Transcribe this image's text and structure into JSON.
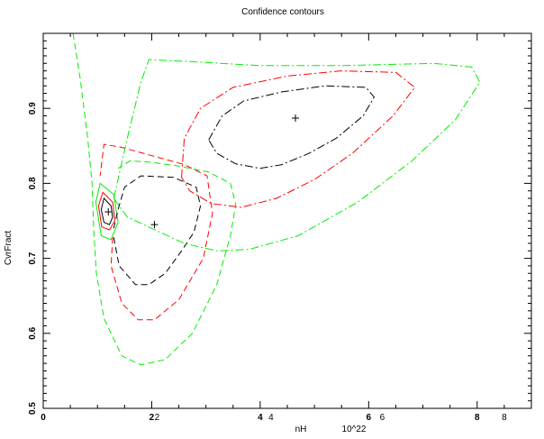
{
  "chart_data": {
    "type": "contour",
    "title": "Confidence contours",
    "xlabel": "nH",
    "xlabel_unit": "10^22",
    "ylabel": "CvrFract",
    "xlim": [
      0,
      9
    ],
    "ylim": [
      0.5,
      1.0
    ],
    "x_major_ticks": [
      0,
      2,
      4,
      6,
      8
    ],
    "x_tick_labels_bold": [
      "0",
      "2",
      "4",
      "6",
      "8"
    ],
    "x_tick_labels_plain": [
      "2",
      "4",
      "6",
      "8"
    ],
    "x_plain_positions": [
      2.1,
      4.2,
      6.25,
      8.5
    ],
    "y_major_ticks": [
      0.5,
      0.6,
      0.7,
      0.8,
      0.9
    ],
    "y_tick_labels": [
      "0.5",
      "0.6",
      "0.7",
      "0.8",
      "0.9"
    ],
    "colors": {
      "level1": "#000000",
      "level2": "#ff0000",
      "level3": "#00ee00"
    },
    "best_fits": [
      {
        "x": 1.2,
        "y": 0.762
      },
      {
        "x": 2.05,
        "y": 0.745
      },
      {
        "x": 4.65,
        "y": 0.887
      }
    ],
    "series": [
      {
        "level": 1,
        "color": "#000000",
        "dash": "solid",
        "closed": true,
        "points": [
          [
            1.12,
            0.78
          ],
          [
            1.25,
            0.77
          ],
          [
            1.28,
            0.755
          ],
          [
            1.22,
            0.745
          ],
          [
            1.12,
            0.748
          ],
          [
            1.07,
            0.765
          ]
        ]
      },
      {
        "level": 2,
        "color": "#ff0000",
        "dash": "solid",
        "closed": true,
        "points": [
          [
            1.1,
            0.788
          ],
          [
            1.28,
            0.775
          ],
          [
            1.32,
            0.75
          ],
          [
            1.22,
            0.738
          ],
          [
            1.08,
            0.742
          ],
          [
            1.02,
            0.77
          ]
        ]
      },
      {
        "level": 3,
        "color": "#00ee00",
        "dash": "solid",
        "closed": true,
        "points": [
          [
            1.05,
            0.8
          ],
          [
            1.3,
            0.785
          ],
          [
            1.38,
            0.748
          ],
          [
            1.25,
            0.725
          ],
          [
            1.07,
            0.73
          ],
          [
            0.97,
            0.775
          ]
        ]
      },
      {
        "level": 1,
        "color": "#000000",
        "dash": "dash",
        "closed": false,
        "points": [
          [
            1.3,
            0.728
          ],
          [
            1.4,
            0.69
          ],
          [
            1.7,
            0.665
          ],
          [
            1.95,
            0.665
          ],
          [
            2.25,
            0.68
          ],
          [
            2.55,
            0.71
          ],
          [
            2.78,
            0.735
          ],
          [
            2.9,
            0.77
          ],
          [
            2.82,
            0.795
          ],
          [
            2.4,
            0.808
          ],
          [
            1.8,
            0.81
          ],
          [
            1.5,
            0.795
          ],
          [
            1.38,
            0.765
          ],
          [
            1.3,
            0.74
          ]
        ]
      },
      {
        "level": 2,
        "color": "#ff0000",
        "dash": "dash",
        "closed": false,
        "points": [
          [
            1.28,
            0.728
          ],
          [
            1.25,
            0.69
          ],
          [
            1.45,
            0.64
          ],
          [
            1.75,
            0.618
          ],
          [
            2.05,
            0.618
          ],
          [
            2.5,
            0.645
          ],
          [
            2.95,
            0.7
          ],
          [
            3.12,
            0.76
          ],
          [
            3.02,
            0.81
          ],
          [
            2.6,
            0.825
          ],
          [
            1.95,
            0.838
          ],
          [
            1.45,
            0.848
          ],
          [
            1.12,
            0.852
          ],
          [
            1.05,
            0.81
          ]
        ]
      },
      {
        "level": 3,
        "color": "#00ee00",
        "dash": "dash",
        "closed": false,
        "points": [
          [
            0.55,
            1.0
          ],
          [
            0.68,
            0.94
          ],
          [
            0.82,
            0.86
          ],
          [
            0.9,
            0.8
          ],
          [
            0.93,
            0.74
          ],
          [
            0.98,
            0.68
          ],
          [
            1.12,
            0.62
          ],
          [
            1.45,
            0.57
          ],
          [
            1.8,
            0.558
          ],
          [
            2.25,
            0.565
          ],
          [
            2.75,
            0.6
          ],
          [
            3.2,
            0.665
          ],
          [
            3.45,
            0.73
          ],
          [
            3.55,
            0.772
          ],
          [
            3.45,
            0.8
          ],
          [
            3.05,
            0.815
          ],
          [
            2.5,
            0.823
          ],
          [
            2.0,
            0.828
          ],
          [
            1.6,
            0.83
          ],
          [
            1.38,
            0.82
          ]
        ]
      },
      {
        "level": 1,
        "color": "#000000",
        "dash": "dashdot",
        "closed": true,
        "points": [
          [
            3.05,
            0.858
          ],
          [
            3.3,
            0.89
          ],
          [
            3.7,
            0.91
          ],
          [
            4.4,
            0.922
          ],
          [
            5.2,
            0.93
          ],
          [
            5.95,
            0.928
          ],
          [
            6.1,
            0.915
          ],
          [
            5.9,
            0.89
          ],
          [
            5.4,
            0.86
          ],
          [
            4.9,
            0.84
          ],
          [
            4.4,
            0.825
          ],
          [
            4.0,
            0.82
          ],
          [
            3.55,
            0.826
          ],
          [
            3.2,
            0.84
          ]
        ]
      },
      {
        "level": 2,
        "color": "#ff0000",
        "dash": "dashdot",
        "closed": true,
        "points": [
          [
            2.55,
            0.808
          ],
          [
            2.6,
            0.86
          ],
          [
            2.9,
            0.9
          ],
          [
            3.5,
            0.928
          ],
          [
            4.5,
            0.943
          ],
          [
            5.5,
            0.95
          ],
          [
            6.5,
            0.948
          ],
          [
            6.85,
            0.928
          ],
          [
            6.45,
            0.89
          ],
          [
            5.7,
            0.84
          ],
          [
            5.0,
            0.805
          ],
          [
            4.3,
            0.78
          ],
          [
            3.65,
            0.768
          ],
          [
            3.1,
            0.773
          ],
          [
            2.7,
            0.79
          ]
        ]
      },
      {
        "level": 3,
        "color": "#00ee00",
        "dash": "dashdot",
        "closed": true,
        "points": [
          [
            1.3,
            0.78
          ],
          [
            1.55,
            0.86
          ],
          [
            1.8,
            0.935
          ],
          [
            1.95,
            0.965
          ],
          [
            2.8,
            0.962
          ],
          [
            4.0,
            0.957
          ],
          [
            5.5,
            0.957
          ],
          [
            7.2,
            0.96
          ],
          [
            7.9,
            0.955
          ],
          [
            8.05,
            0.935
          ],
          [
            7.6,
            0.885
          ],
          [
            6.8,
            0.83
          ],
          [
            5.8,
            0.775
          ],
          [
            4.7,
            0.73
          ],
          [
            3.8,
            0.712
          ],
          [
            3.2,
            0.71
          ],
          [
            2.6,
            0.72
          ],
          [
            2.0,
            0.74
          ],
          [
            1.55,
            0.755
          ]
        ]
      }
    ]
  }
}
